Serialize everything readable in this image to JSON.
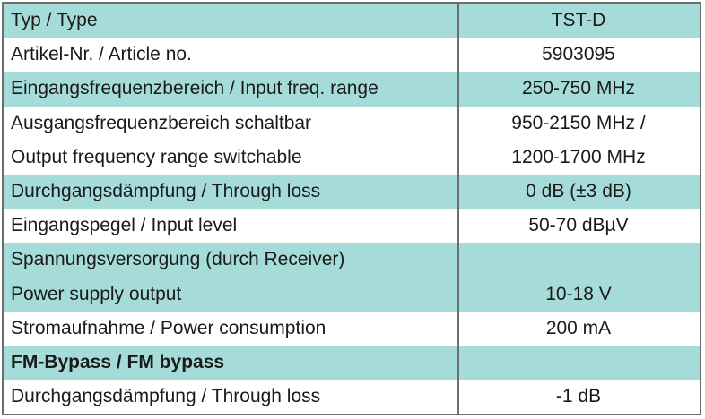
{
  "table": {
    "header": {
      "label": "Typ / Type",
      "value": "TST-D"
    },
    "rows": [
      {
        "label": "Artikel-Nr. / Article no.",
        "value": "5903095"
      },
      {
        "label": "Eingangsfrequenzbereich / Input freq. range",
        "value": "250-750 MHz"
      },
      {
        "label": "Ausgangsfrequenzbereich schaltbar",
        "value": "950-2150 MHz /"
      },
      {
        "label": "Output frequency range switchable",
        "value": "1200-1700 MHz"
      },
      {
        "label": "Durchgangsdämpfung / Through loss",
        "value": "0 dB (±3 dB)"
      },
      {
        "label": "Eingangspegel / Input level",
        "value": "50-70 dBµV"
      },
      {
        "label": "Spannungsversorgung (durch Receiver)",
        "value": ""
      },
      {
        "label": "Power supply output",
        "value": "10-18 V"
      },
      {
        "label": "Stromaufnahme / Power consumption",
        "value": "200 mA"
      },
      {
        "label": "FM-Bypass / FM bypass",
        "value": ""
      },
      {
        "label": "Durchgangsdämpfung / Through loss",
        "value": "-1 dB"
      }
    ]
  },
  "colors": {
    "row_shade": "#a5dcd9",
    "border": "#6e6e6e",
    "text": "#1a1a1a"
  }
}
